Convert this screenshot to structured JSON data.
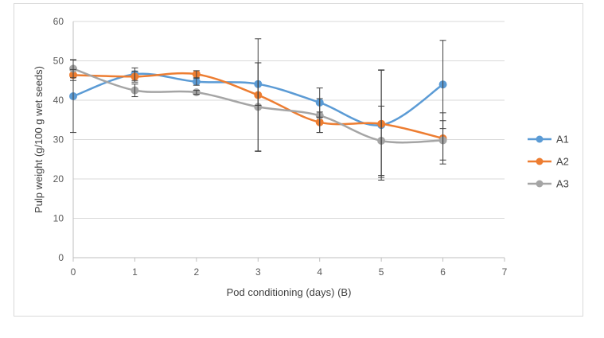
{
  "chart_data": {
    "type": "line",
    "title": "",
    "xlabel": "Pod conditioning (days) (B)",
    "ylabel": "Pulp weight (g/100 g wet seeds)",
    "xlim": [
      0,
      7
    ],
    "ylim": [
      0,
      60
    ],
    "x_ticks": [
      0,
      1,
      2,
      3,
      4,
      5,
      6,
      7
    ],
    "y_ticks": [
      0,
      10,
      20,
      30,
      40,
      50,
      60
    ],
    "grid": "horizontal",
    "legend_position": "right",
    "smoothed": true,
    "series": [
      {
        "name": "A1",
        "color": "#5b9bd5",
        "x": [
          0,
          1,
          2,
          3,
          4,
          5,
          6
        ],
        "y": [
          41.0,
          46.6,
          44.7,
          44.1,
          39.4,
          33.7,
          44.0
        ],
        "error": [
          9.2,
          1.6,
          0.9,
          5.4,
          3.7,
          14.0,
          11.2
        ]
      },
      {
        "name": "A2",
        "color": "#ed7d31",
        "x": [
          0,
          1,
          2,
          3,
          4,
          5,
          6
        ],
        "y": [
          46.4,
          46.0,
          46.6,
          41.3,
          34.4,
          34.0,
          30.3
        ],
        "error": [
          1.4,
          1.4,
          0.9,
          14.3,
          2.6,
          13.6,
          6.5
        ]
      },
      {
        "name": "A3",
        "color": "#a5a5a5",
        "x": [
          0,
          1,
          2,
          3,
          4,
          5,
          6
        ],
        "y": [
          48.0,
          42.5,
          42.0,
          38.3,
          36.1,
          29.7,
          29.8
        ],
        "error": [
          2.3,
          1.6,
          0.5,
          11.2,
          4.3,
          8.8,
          5.0
        ]
      }
    ]
  }
}
